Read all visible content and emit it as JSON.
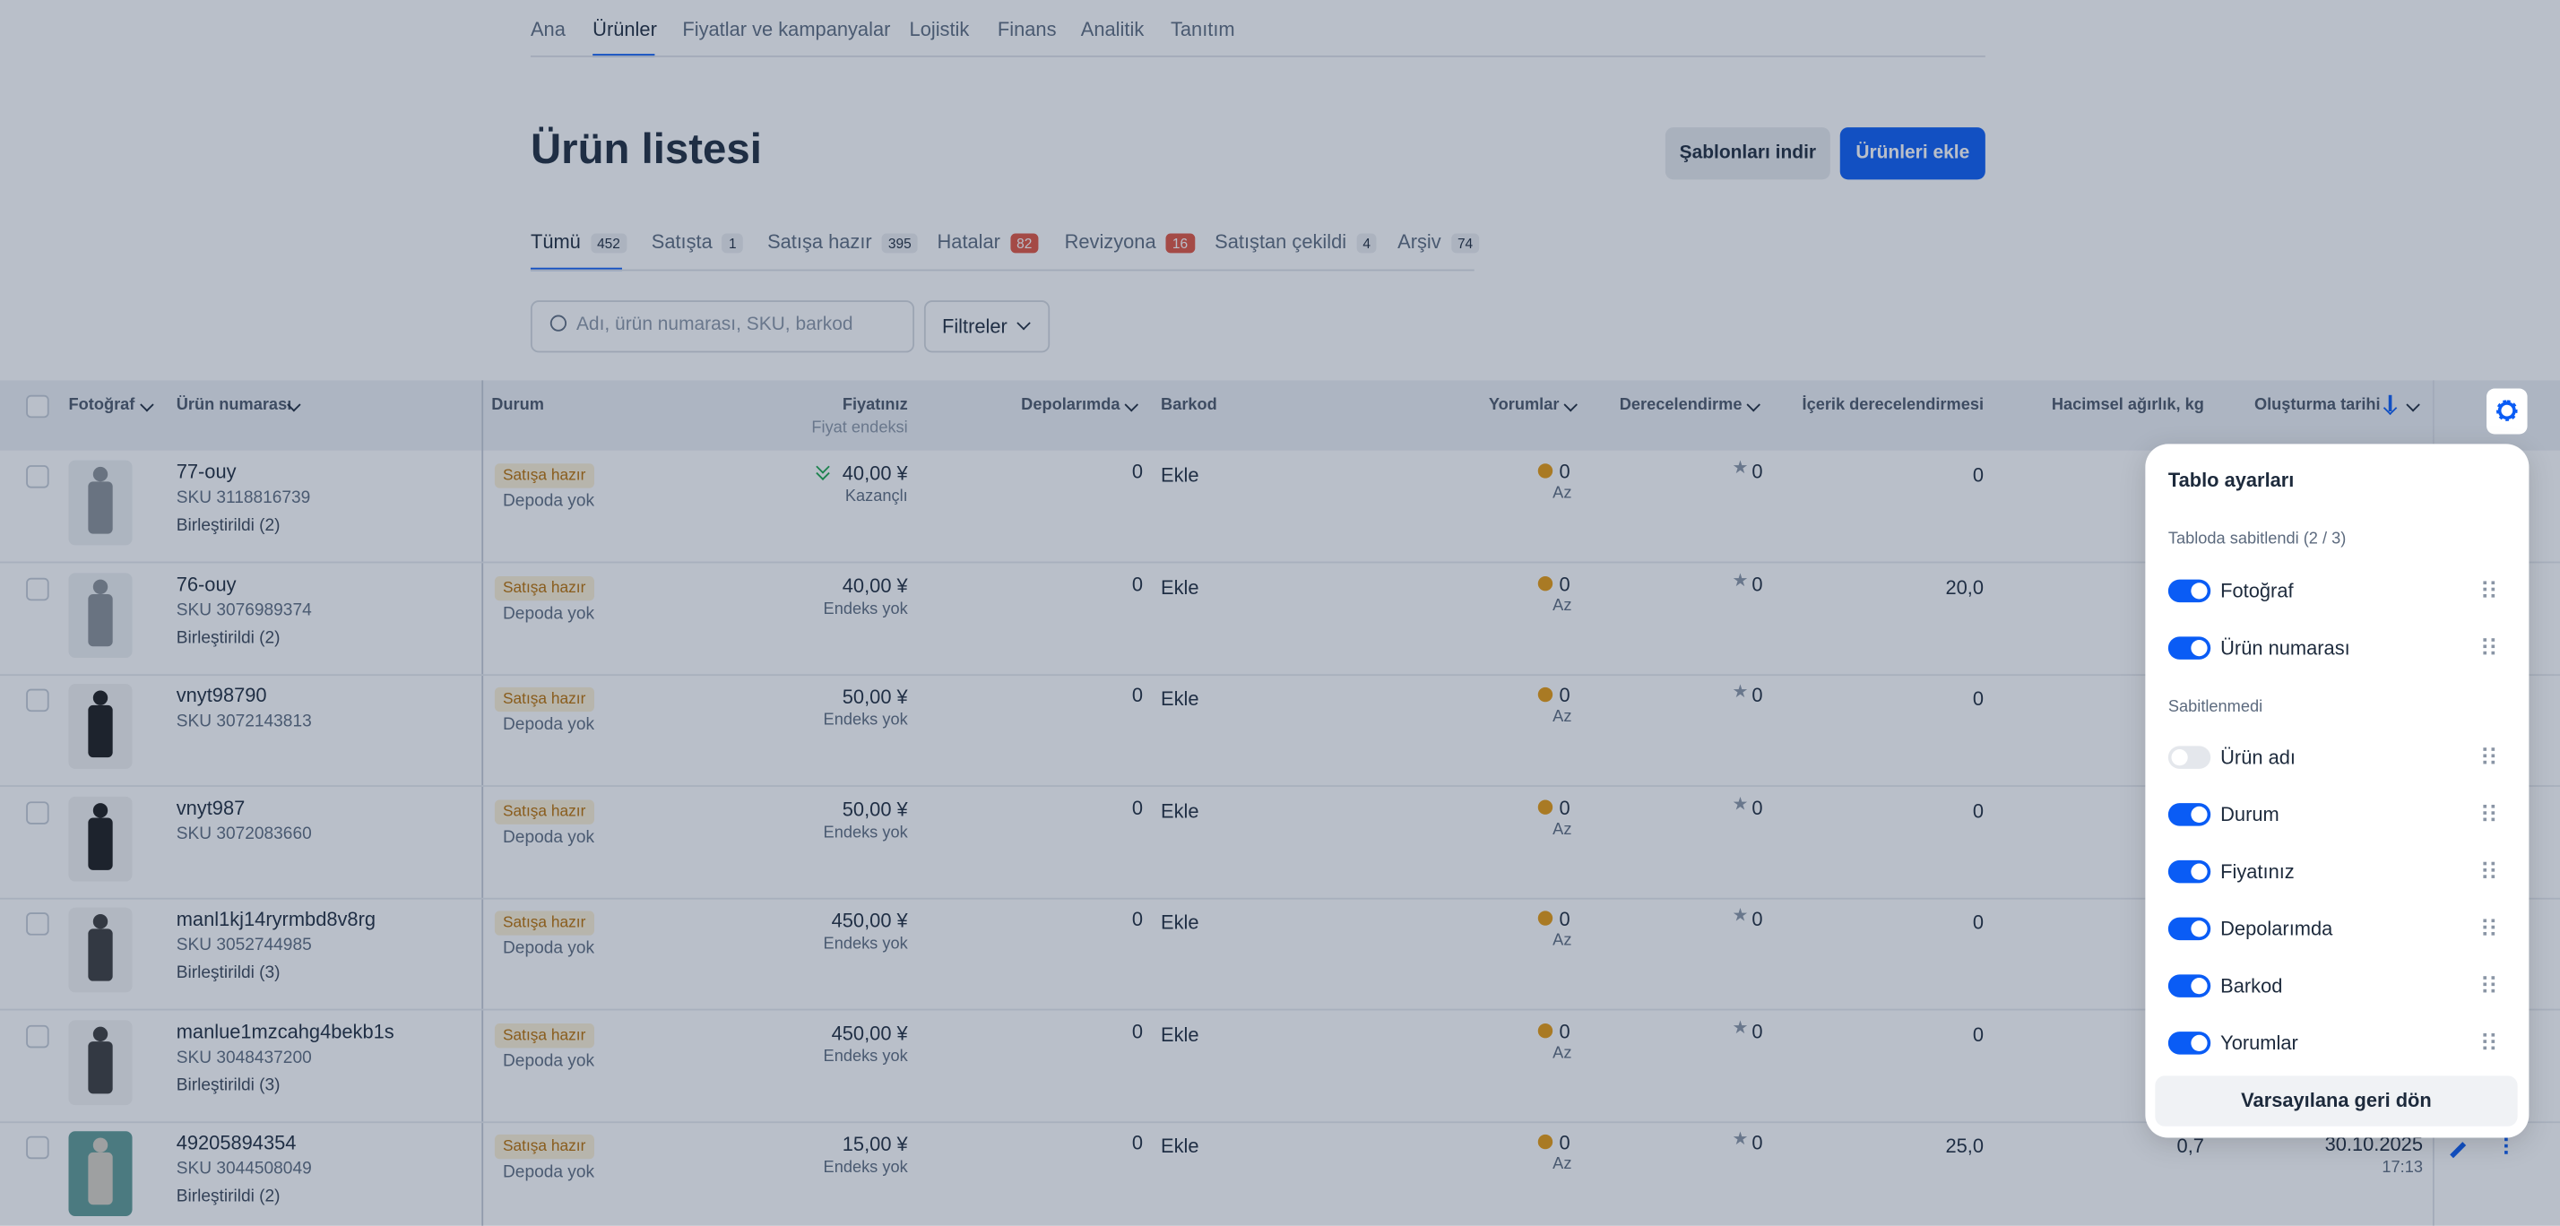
{
  "nav": {
    "items": [
      "Ana",
      "Ürünler",
      "Fiyatlar ve kampanyalar",
      "Lojistik",
      "Finans",
      "Analitik",
      "Tanıtım"
    ],
    "active": 1
  },
  "header": {
    "title": "Ürün listesi",
    "buttons": [
      "Şablonları indir",
      "Ürünleri ekle"
    ]
  },
  "tabs": [
    {
      "label": "Tümü",
      "count": 452
    },
    {
      "label": "Satışta",
      "count": 1
    },
    {
      "label": "Satışa hazır",
      "count": 395
    },
    {
      "label": "Hatalar",
      "count": 82,
      "alert": true
    },
    {
      "label": "Revizyona",
      "count": 16,
      "alert": true
    },
    {
      "label": "Satıştan çekildi",
      "count": 4
    },
    {
      "label": "Arşiv",
      "count": 74
    }
  ],
  "search": {
    "placeholder": "Adı, ürün numarası, SKU, barkod",
    "filter": "Filtreler"
  },
  "table": {
    "columns": [
      "Fotoğraf",
      "Ürün numarası",
      "Durum",
      "Fiyatınız",
      "Depolarımda",
      "Barkod",
      "Yorumlar",
      "Derecelendirme",
      "İçerik derecelendirmesi",
      "Hacimsel ağırlık, kg",
      "Oluşturma tarihi"
    ],
    "price_subheader": "Fiyat endeksi",
    "rows": [
      {
        "product": "77-ouy",
        "sku": "SKU 3118816739",
        "merged": "Birleştirildi (2)",
        "status": "Satışa hazır",
        "stock": "Depoda yok",
        "price": "40,00 ¥",
        "price_note": "Kazançlı",
        "qty": 0,
        "barcode": "Ekle",
        "reviews": 0,
        "reviews_note": "Az",
        "rating": 0,
        "content": 0
      },
      {
        "product": "76-ouy",
        "sku": "SKU 3076989374",
        "merged": "Birleştirildi (2)",
        "status": "Satışa hazır",
        "stock": "Depoda yok",
        "price": "40,00 ¥",
        "price_note": "Endeks yok",
        "qty": 0,
        "barcode": "Ekle",
        "reviews": 0,
        "reviews_note": "Az",
        "rating": 0,
        "content": "20,0"
      },
      {
        "product": "vnyt98790",
        "sku": "SKU 3072143813",
        "status": "Satışa hazır",
        "stock": "Depoda yok",
        "price": "50,00 ¥",
        "price_note": "Endeks yok",
        "qty": 0,
        "barcode": "Ekle",
        "reviews": 0,
        "reviews_note": "Az",
        "rating": 0,
        "content": 0
      },
      {
        "product": "vnyt987",
        "sku": "SKU 3072083660",
        "status": "Satışa hazır",
        "stock": "Depoda yok",
        "price": "50,00 ¥",
        "price_note": "Endeks yok",
        "qty": 0,
        "barcode": "Ekle",
        "reviews": 0,
        "reviews_note": "Az",
        "rating": 0,
        "content": 0
      },
      {
        "product": "manl1kj14ryrmbd8v8rg",
        "sku": "SKU 3052744985",
        "merged": "Birleştirildi (3)",
        "status": "Satışa hazır",
        "stock": "Depoda yok",
        "price": "450,00 ¥",
        "price_note": "Endeks yok",
        "qty": 0,
        "barcode": "Ekle",
        "reviews": 0,
        "reviews_note": "Az",
        "rating": 0,
        "content": 0
      },
      {
        "product": "manlue1mzcahg4bekb1s",
        "sku": "SKU 3048437200",
        "merged": "Birleştirildi (3)",
        "status": "Satışa hazır",
        "stock": "Depoda yok",
        "price": "450,00 ¥",
        "price_note": "Endeks yok",
        "qty": 0,
        "barcode": "Ekle",
        "reviews": 0,
        "reviews_note": "Az",
        "rating": 0,
        "content": 0
      },
      {
        "product": "49205894354",
        "sku": "SKU 3044508049",
        "merged": "Birleştirildi (2)",
        "status": "Satışa hazır",
        "stock": "Depoda yok",
        "price": "15,00 ¥",
        "price_note": "Endeks yok",
        "qty": 0,
        "barcode": "Ekle",
        "reviews": 0,
        "reviews_note": "Az",
        "rating": 0,
        "content": "25,0",
        "weight": "0,7",
        "created": "30.10.2025",
        "time": "17:13"
      }
    ]
  },
  "settings": {
    "title": "Tablo ayarları",
    "pinned_title": "Tabloda sabitlendi (2 / 3)",
    "pinned": [
      {
        "label": "Fotoğraf",
        "on": true
      },
      {
        "label": "Ürün numarası",
        "on": true
      }
    ],
    "unpinned_title": "Sabitlenmedi",
    "unpinned": [
      {
        "label": "Ürün adı",
        "on": false
      },
      {
        "label": "Durum",
        "on": true
      },
      {
        "label": "Fiyatınız",
        "on": true
      },
      {
        "label": "Depolarımda",
        "on": true
      },
      {
        "label": "Barkod",
        "on": true
      },
      {
        "label": "Yorumlar",
        "on": true
      }
    ],
    "reset": "Varsayılana geri dön"
  }
}
